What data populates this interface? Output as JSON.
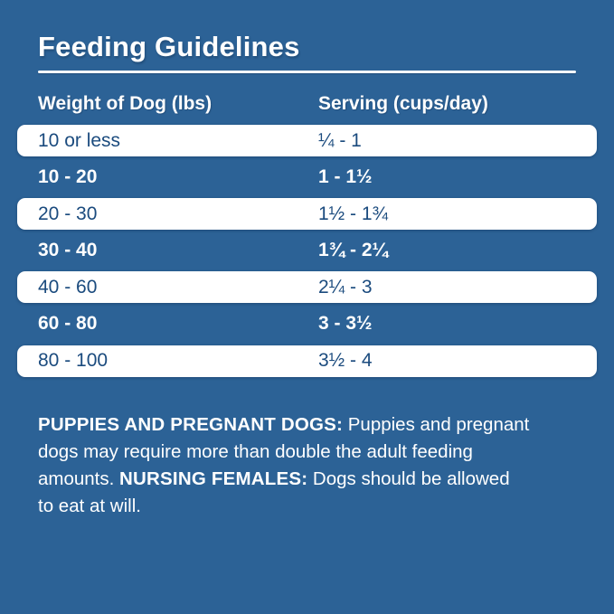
{
  "title": "Feeding Guidelines",
  "table": {
    "headers": {
      "weight": "Weight of Dog (lbs)",
      "serving": "Serving (cups/day)"
    },
    "rows": [
      {
        "weight": "10 or less",
        "serving": "¼ - 1",
        "highlight": true
      },
      {
        "weight": "10 - 20",
        "serving": "1 - 1½",
        "highlight": false
      },
      {
        "weight": "20 - 30",
        "serving": "1½ - 1¾",
        "highlight": true
      },
      {
        "weight": "30 - 40",
        "serving": "1¾ - 2¼",
        "highlight": false
      },
      {
        "weight": "40 - 60",
        "serving": "2¼ - 3",
        "highlight": true
      },
      {
        "weight": "60 - 80",
        "serving": "3 - 3½",
        "highlight": false
      },
      {
        "weight": "80 - 100",
        "serving": "3½ - 4",
        "highlight": true
      }
    ]
  },
  "footnote": {
    "lines": [
      [
        {
          "text": "PUPPIES AND PREGNANT DOGS:",
          "bold": true
        },
        {
          "text": " Puppies and pregnant",
          "bold": false
        }
      ],
      [
        {
          "text": "dogs may require more than double the adult feeding",
          "bold": false
        }
      ],
      [
        {
          "text": "amounts. ",
          "bold": false
        },
        {
          "text": "NURSING FEMALES:",
          "bold": true
        },
        {
          "text": " Dogs should be allowed",
          "bold": false
        }
      ],
      [
        {
          "text": "to eat at will.",
          "bold": false
        }
      ]
    ]
  },
  "colors": {
    "background": "#2c6296",
    "highlight_row_background": "#ffffff",
    "dark_row_text": "#1b4b7e",
    "light_text": "#ffffff"
  }
}
